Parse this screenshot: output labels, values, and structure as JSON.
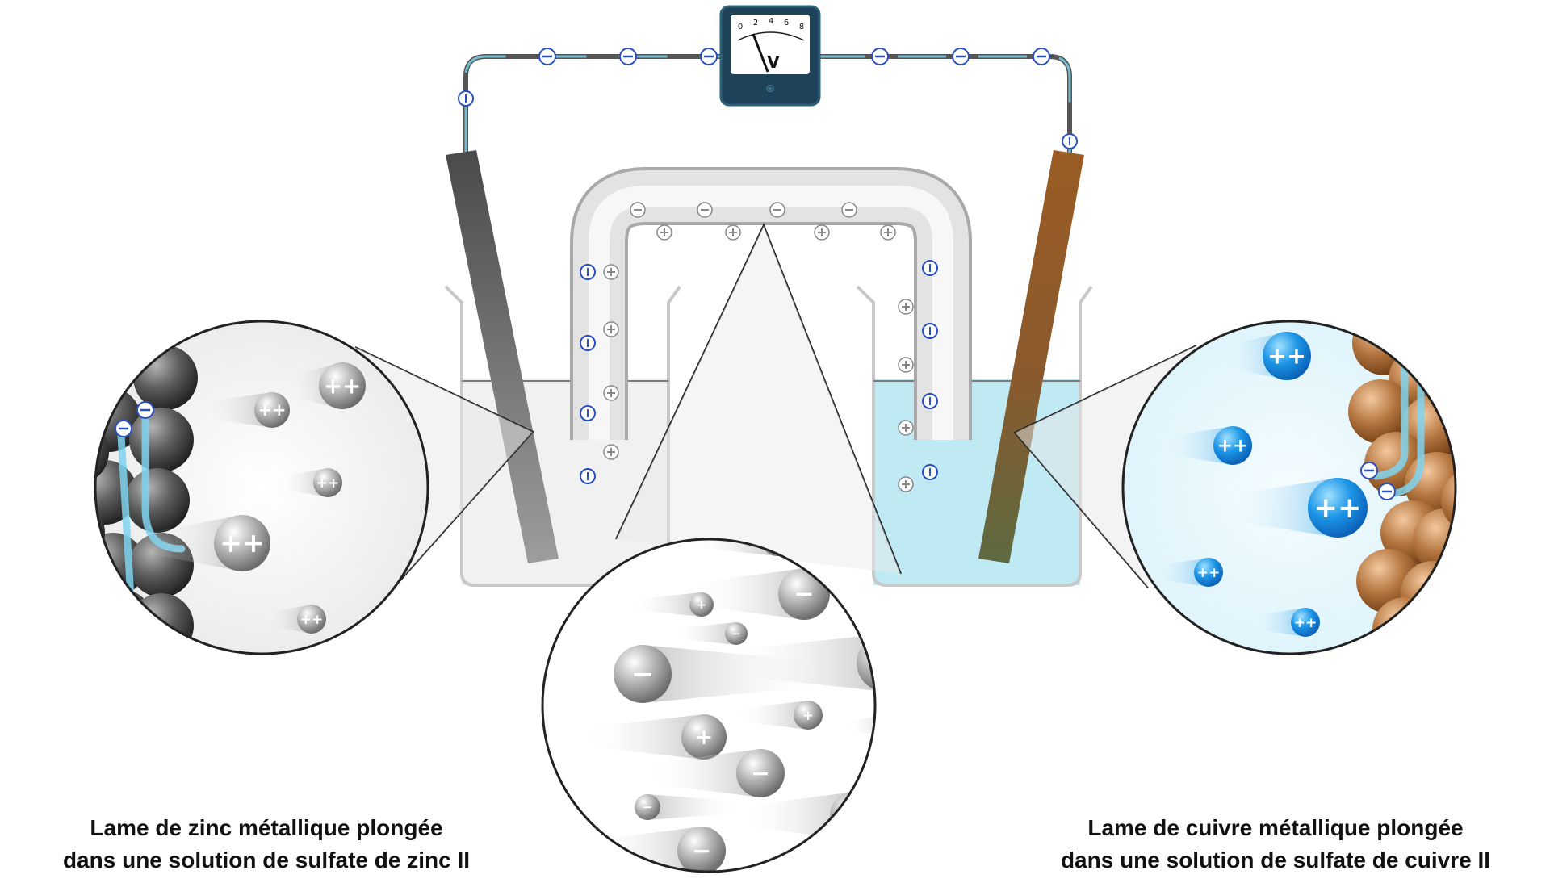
{
  "captions": {
    "left": [
      "Lame de zinc métallique plongée",
      "dans une solution de sulfate de zinc II"
    ],
    "right": [
      "Lame de cuivre métallique plongée",
      "dans une solution de sulfate de cuivre II"
    ]
  },
  "voltmeter": {
    "unit": "V",
    "scale": [
      "0",
      "2",
      "4",
      "6",
      "8"
    ],
    "terminal": "⊕"
  },
  "ion_labels": {
    "zinc": "++",
    "copper": "++",
    "cation": "+",
    "anion": "−"
  },
  "colors": {
    "zinc_metal": "#6b6b6b",
    "copper_metal": "#8b5a2b",
    "copper_solution": "#bfe9f3",
    "electron_glow": "#7fd4ee",
    "copper_ion": "#1a8fe0",
    "meter_body": "#234a5e"
  }
}
